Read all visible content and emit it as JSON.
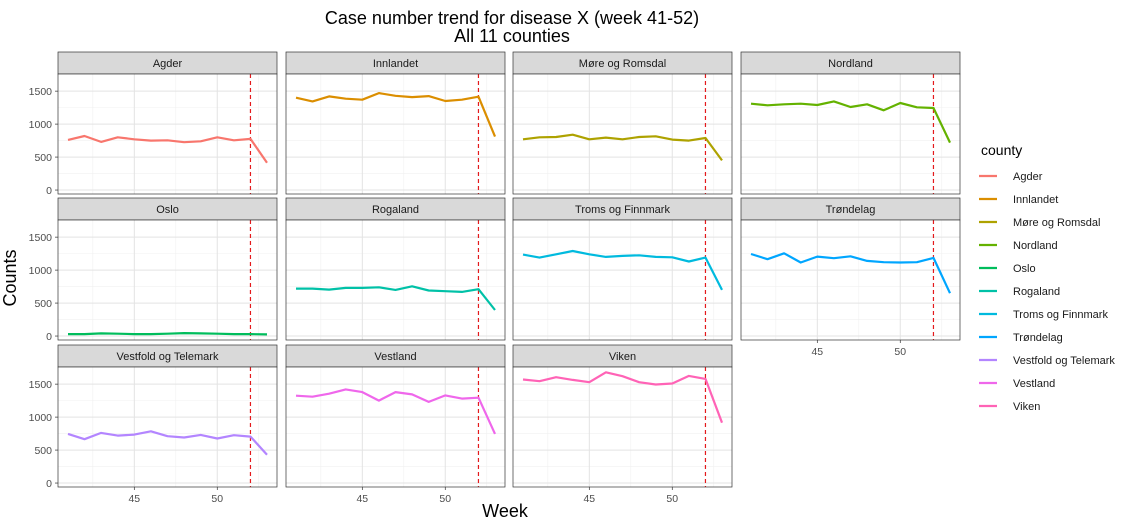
{
  "chart_data": {
    "type": "line",
    "title": "Case number trend for disease X (week 41-52)",
    "subtitle": "All 11 counties",
    "xlabel": "Week",
    "ylabel": "Counts",
    "legend_title": "county",
    "legend_position": "right",
    "grid": true,
    "x_ticks": [
      45,
      50
    ],
    "y_ticks": [
      0,
      500,
      1000,
      1500
    ],
    "xlim": [
      40.4,
      53.6
    ],
    "ylim": [
      -60,
      1760
    ],
    "reference_line": {
      "x": 52,
      "color": "#e41a1c",
      "style": "dashed"
    },
    "x": [
      41,
      42,
      43,
      44,
      45,
      46,
      47,
      48,
      49,
      50,
      51,
      52,
      53
    ],
    "series": [
      {
        "name": "Agder",
        "color": "#F8766D",
        "values": [
          760,
          820,
          730,
          800,
          770,
          750,
          755,
          725,
          740,
          800,
          755,
          775,
          415
        ]
      },
      {
        "name": "Innlandet",
        "color": "#DB8E00",
        "values": [
          1400,
          1345,
          1420,
          1385,
          1370,
          1470,
          1430,
          1410,
          1425,
          1350,
          1370,
          1415,
          810
        ]
      },
      {
        "name": "Møre og Romsdal",
        "color": "#AEA200",
        "values": [
          770,
          800,
          805,
          840,
          770,
          795,
          770,
          805,
          815,
          765,
          750,
          790,
          450
        ]
      },
      {
        "name": "Nordland",
        "color": "#64B200",
        "values": [
          1310,
          1285,
          1300,
          1310,
          1290,
          1345,
          1260,
          1300,
          1210,
          1320,
          1255,
          1245,
          720
        ]
      },
      {
        "name": "Oslo",
        "color": "#00BD5C",
        "values": [
          30,
          30,
          40,
          35,
          30,
          30,
          35,
          45,
          40,
          35,
          30,
          30,
          25
        ]
      },
      {
        "name": "Rogaland",
        "color": "#00C1A7",
        "values": [
          720,
          720,
          705,
          730,
          730,
          740,
          700,
          755,
          690,
          680,
          670,
          710,
          395
        ]
      },
      {
        "name": "Troms og Finnmark",
        "color": "#00BADE",
        "values": [
          1235,
          1190,
          1240,
          1290,
          1240,
          1200,
          1215,
          1225,
          1200,
          1195,
          1130,
          1190,
          700
        ]
      },
      {
        "name": "Trøndelag",
        "color": "#00A6FF",
        "values": [
          1245,
          1165,
          1255,
          1115,
          1205,
          1180,
          1210,
          1140,
          1120,
          1115,
          1120,
          1185,
          650
        ]
      },
      {
        "name": "Vestfold og Telemark",
        "color": "#B385FF",
        "values": [
          745,
          665,
          760,
          720,
          735,
          785,
          710,
          690,
          730,
          675,
          725,
          705,
          430
        ]
      },
      {
        "name": "Vestland",
        "color": "#EF67EB",
        "values": [
          1325,
          1310,
          1355,
          1420,
          1380,
          1250,
          1380,
          1345,
          1230,
          1330,
          1280,
          1295,
          745
        ]
      },
      {
        "name": "Viken",
        "color": "#FF63B6",
        "values": [
          1570,
          1545,
          1605,
          1565,
          1530,
          1680,
          1620,
          1530,
          1495,
          1510,
          1625,
          1580,
          915
        ]
      }
    ]
  }
}
